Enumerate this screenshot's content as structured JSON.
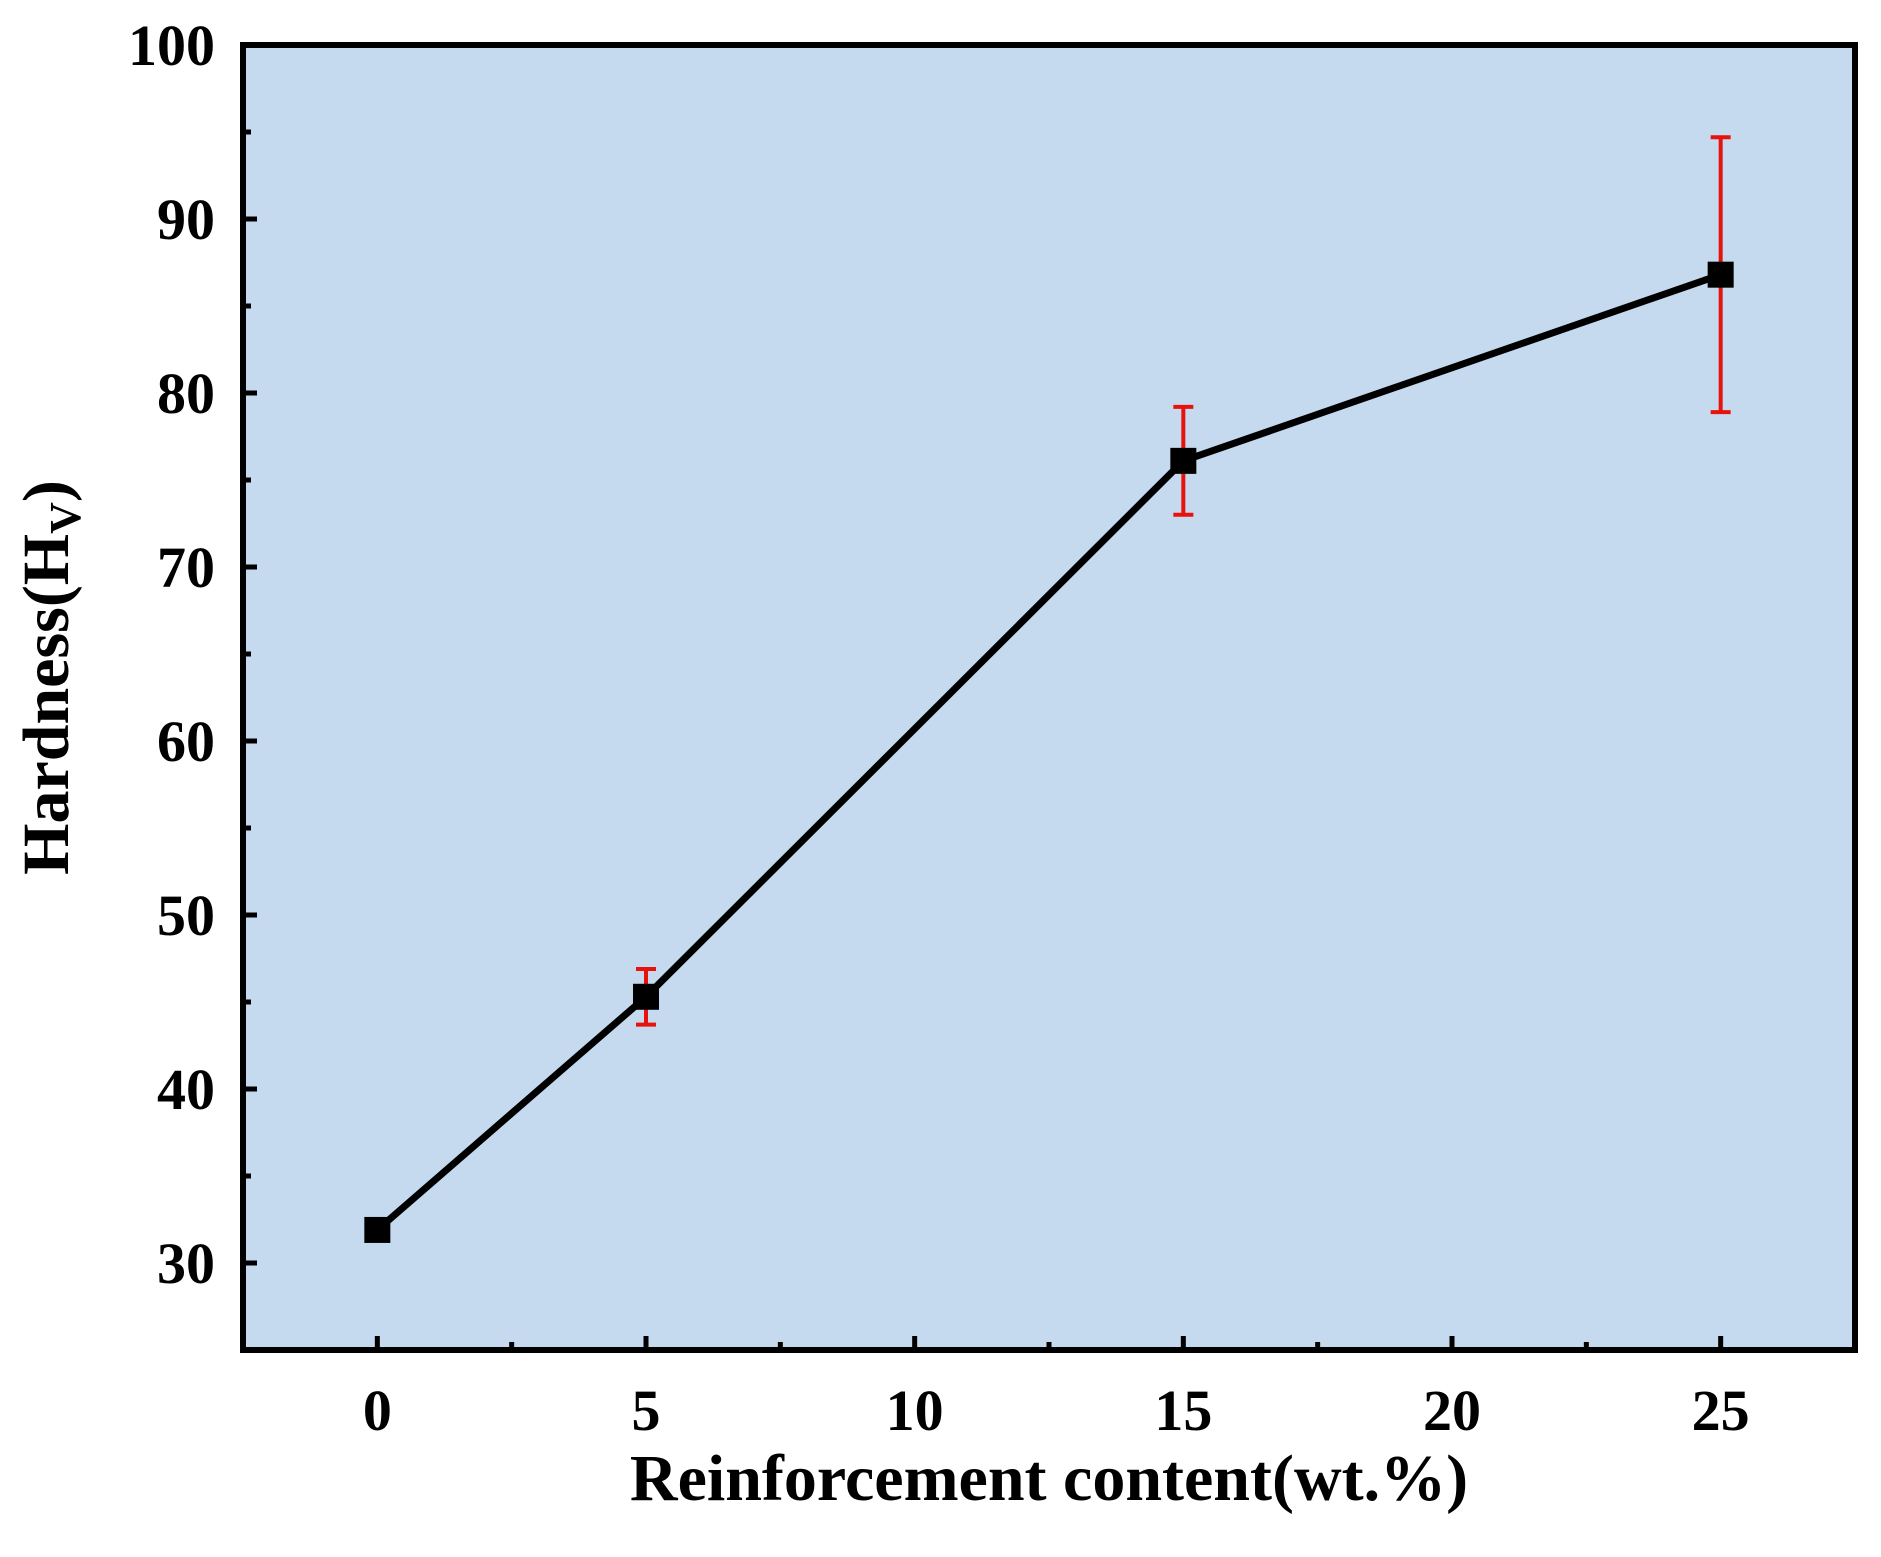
{
  "chart_data": {
    "type": "line",
    "title": "",
    "xlabel": "Reinforcement content(wt.%)",
    "ylabel": {
      "main": "Hardness(H",
      "subscript": "V",
      "close": ")"
    },
    "xlim": [
      -2.5,
      27.5
    ],
    "ylim": [
      25,
      100
    ],
    "x_ticks": [
      0,
      5,
      10,
      15,
      20,
      25
    ],
    "x_tick_labels": [
      "0",
      "5",
      "10",
      "15",
      "20",
      "25"
    ],
    "x_minor_ticks": [
      2.5,
      7.5,
      12.5,
      17.5,
      22.5
    ],
    "y_ticks": [
      30,
      40,
      50,
      60,
      70,
      80,
      90,
      100
    ],
    "y_tick_labels": [
      "30",
      "40",
      "50",
      "60",
      "70",
      "80",
      "90",
      "100"
    ],
    "y_minor_ticks": [
      35,
      45,
      55,
      65,
      75,
      85,
      95
    ],
    "grid": false,
    "legend": "none",
    "series": [
      {
        "x": [
          0,
          5,
          15,
          25
        ],
        "y": [
          31.9,
          45.3,
          76.1,
          86.8
        ],
        "error": [
          0,
          1.6,
          3.1,
          7.9
        ]
      }
    ],
    "colors": {
      "background": "#c5daef",
      "line": "#000000",
      "marker": "#000000",
      "error_bar": "#e8120c",
      "axis": "#000000"
    }
  }
}
